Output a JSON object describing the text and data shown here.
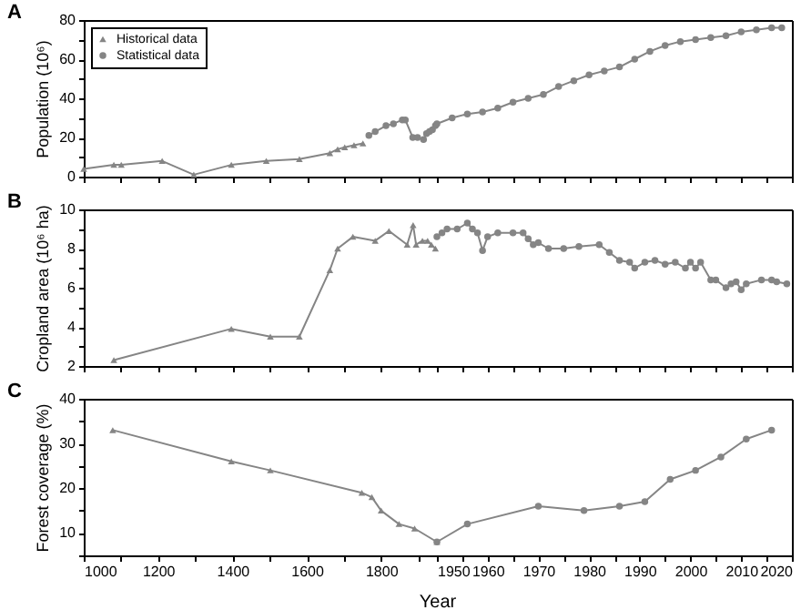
{
  "chart_data": [
    {
      "type": "line",
      "title": "A",
      "ylabel": "Population (10⁶)",
      "xlim": [
        1000,
        1950
      ],
      "ylim": [
        0,
        80
      ],
      "xticks": [
        1000,
        {
          "value": 1100,
          "label": null
        },
        1200,
        {
          "value": 1300,
          "label": null
        },
        1400,
        {
          "value": 1500,
          "label": null
        },
        1600,
        {
          "value": 1700,
          "label": null
        },
        1800,
        {
          "value": 1900,
          "label": null
        }
      ],
      "yticks": [
        0,
        {
          "value": 10,
          "label": null
        },
        20,
        {
          "value": 30,
          "label": null
        },
        40,
        {
          "value": 50,
          "label": null
        },
        60,
        {
          "value": 70,
          "label": null
        },
        80
      ],
      "legend": "top left",
      "tick_labels": "y",
      "series": [
        {
          "name": "Historical data",
          "color": "#858585",
          "marker": "triangle",
          "x": [
            1000,
            1081,
            1101,
            1211,
            1296,
            1397,
            1491,
            1580,
            1662,
            1683,
            1702,
            1727,
            1751
          ],
          "values": [
            4,
            6,
            6,
            8,
            1,
            6,
            8,
            9,
            12,
            14,
            15,
            16,
            17
          ]
        },
        {
          "name": "Statistical data",
          "color": "#858585",
          "marker": "circle",
          "x": [
            1767,
            1784,
            1813,
            1833,
            1857,
            1865,
            1885,
            1898,
            1914,
            1922,
            1930,
            1938,
            1946
          ],
          "values": [
            21,
            23,
            26,
            27,
            29,
            29,
            20,
            20,
            19,
            22,
            23,
            24,
            26
          ]
        }
      ]
    },
    {
      "type": "line",
      "xlim": [
        1950,
        2020
      ],
      "ylim": [
        0,
        80
      ],
      "xticks": [
        1950,
        {
          "value": 1955,
          "label": null
        },
        1960,
        {
          "value": 1965,
          "label": null
        },
        1970,
        {
          "value": 1975,
          "label": null
        },
        1980,
        {
          "value": 1985,
          "label": null
        },
        1990,
        {
          "value": 1995,
          "label": null
        },
        2000,
        {
          "value": 2005,
          "label": null
        },
        2010,
        {
          "value": 2015,
          "label": null
        },
        2020
      ],
      "tick_labels": false,
      "series": [
        {
          "color": "#858585",
          "marker": "circle",
          "x": [
            1950,
            1953,
            1956,
            1959,
            1962,
            1965,
            1968,
            1971,
            1974,
            1977,
            1980,
            1983,
            1986,
            1989,
            1992,
            1995,
            1998,
            2001,
            2004,
            2007,
            2010,
            2013,
            2016,
            2018
          ],
          "values": [
            27,
            30,
            32,
            33,
            35,
            38,
            40,
            42,
            46,
            49,
            52,
            54,
            56,
            60,
            64,
            67,
            69,
            70,
            71,
            72,
            74,
            75,
            76,
            76
          ]
        }
      ]
    },
    {
      "type": "line",
      "title": "B",
      "ylabel": "Cropland area (10⁶ ha)",
      "xlim": [
        1000,
        1950
      ],
      "ylim": [
        2,
        10
      ],
      "xticks": [
        1000,
        {
          "value": 1100,
          "label": null
        },
        1200,
        {
          "value": 1300,
          "label": null
        },
        1400,
        {
          "value": 1500,
          "label": null
        },
        1600,
        {
          "value": 1700,
          "label": null
        },
        1800,
        {
          "value": 1900,
          "label": null
        }
      ],
      "yticks": [
        2,
        {
          "value": 3,
          "label": null
        },
        4,
        {
          "value": 5,
          "label": null
        },
        6,
        {
          "value": 7,
          "label": null
        },
        8,
        {
          "value": 9,
          "label": null
        },
        10
      ],
      "tick_labels": "y",
      "series": [
        {
          "color": "#858585",
          "marker": "triangle",
          "x": [
            1081,
            1397,
            1502,
            1580,
            1662,
            1683,
            1724,
            1784,
            1821,
            1870,
            1886,
            1894,
            1911,
            1925,
            1935,
            1946
          ],
          "values": [
            2.3,
            3.9,
            3.5,
            3.5,
            6.9,
            8,
            8.6,
            8.4,
            8.9,
            8.2,
            9.2,
            8.2,
            8.4,
            8.4,
            8.2,
            8
          ]
        }
      ]
    },
    {
      "type": "line",
      "xlim": [
        1950,
        2020
      ],
      "ylim": [
        2,
        10
      ],
      "xticks": [
        1950,
        {
          "value": 1955,
          "label": null
        },
        1960,
        {
          "value": 1965,
          "label": null
        },
        1970,
        {
          "value": 1975,
          "label": null
        },
        1980,
        {
          "value": 1985,
          "label": null
        },
        1990,
        {
          "value": 1995,
          "label": null
        },
        2000,
        {
          "value": 2005,
          "label": null
        },
        2010,
        {
          "value": 2015,
          "label": null
        },
        2020
      ],
      "tick_labels": false,
      "series": [
        {
          "color": "#858585",
          "marker": "circle",
          "x": [
            1950,
            1951,
            1952,
            1954,
            1956,
            1957,
            1958,
            1959,
            1960,
            1962,
            1965,
            1967,
            1968,
            1969,
            1970,
            1972,
            1975,
            1978,
            1982,
            1984,
            1986,
            1988,
            1989,
            1991,
            1993,
            1995,
            1997,
            1999,
            2000,
            2001,
            2002,
            2004,
            2005,
            2007,
            2008,
            2009,
            2010,
            2011,
            2014,
            2016,
            2017,
            2019
          ],
          "values": [
            8.6,
            8.8,
            9,
            9,
            9.3,
            9,
            8.8,
            7.9,
            8.6,
            8.8,
            8.8,
            8.8,
            8.5,
            8.2,
            8.3,
            8,
            8,
            8.1,
            8.2,
            7.8,
            7.4,
            7.3,
            7,
            7.3,
            7.4,
            7.2,
            7.3,
            7,
            7.3,
            7,
            7.3,
            6.4,
            6.4,
            6,
            6.2,
            6.3,
            5.9,
            6.2,
            6.4,
            6.4,
            6.3,
            6.2
          ]
        }
      ]
    },
    {
      "type": "line",
      "title": "C",
      "xlabel": "Year",
      "ylabel": "Forest coverage (%)",
      "xlim": [
        1000,
        1950
      ],
      "ylim": [
        5,
        40
      ],
      "xticks": [
        1000,
        {
          "value": 1100,
          "label": null
        },
        1200,
        {
          "value": 1300,
          "label": null
        },
        1400,
        {
          "value": 1500,
          "label": null
        },
        1600,
        {
          "value": 1700,
          "label": null
        },
        1800,
        {
          "value": 1900,
          "label": null
        }
      ],
      "yticks": [
        {
          "value": 5,
          "label": null
        },
        10,
        {
          "value": 15,
          "label": null
        },
        20,
        {
          "value": 25,
          "label": null
        },
        30,
        {
          "value": 35,
          "label": null
        },
        40
      ],
      "series": [
        {
          "color": "#858585",
          "marker": "triangle",
          "x": [
            1078,
            1397,
            1502,
            1748,
            1775,
            1800,
            1848,
            1890,
            1950
          ],
          "values": [
            33,
            26,
            24,
            19,
            18,
            15,
            12,
            11,
            8
          ]
        }
      ]
    },
    {
      "type": "line",
      "xlim": [
        1950,
        2020
      ],
      "ylim": [
        5,
        40
      ],
      "xticks": [
        1950,
        {
          "value": 1955,
          "label": null
        },
        1960,
        {
          "value": 1965,
          "label": null
        },
        1970,
        {
          "value": 1975,
          "label": null
        },
        1980,
        {
          "value": 1985,
          "label": null
        },
        1990,
        {
          "value": 1995,
          "label": null
        },
        2000,
        {
          "value": 2005,
          "label": null
        },
        2010,
        {
          "value": 2015,
          "label": null
        },
        2020
      ],
      "tick_labels": "x",
      "series": [
        {
          "color": "#858585",
          "marker": "circle",
          "x": [
            1950,
            1956,
            1970,
            1979,
            1986,
            1991,
            1996,
            2001,
            2006,
            2011,
            2016
          ],
          "values": [
            8,
            12,
            16,
            15,
            16,
            17,
            22,
            24,
            27,
            31,
            33
          ]
        }
      ]
    }
  ]
}
